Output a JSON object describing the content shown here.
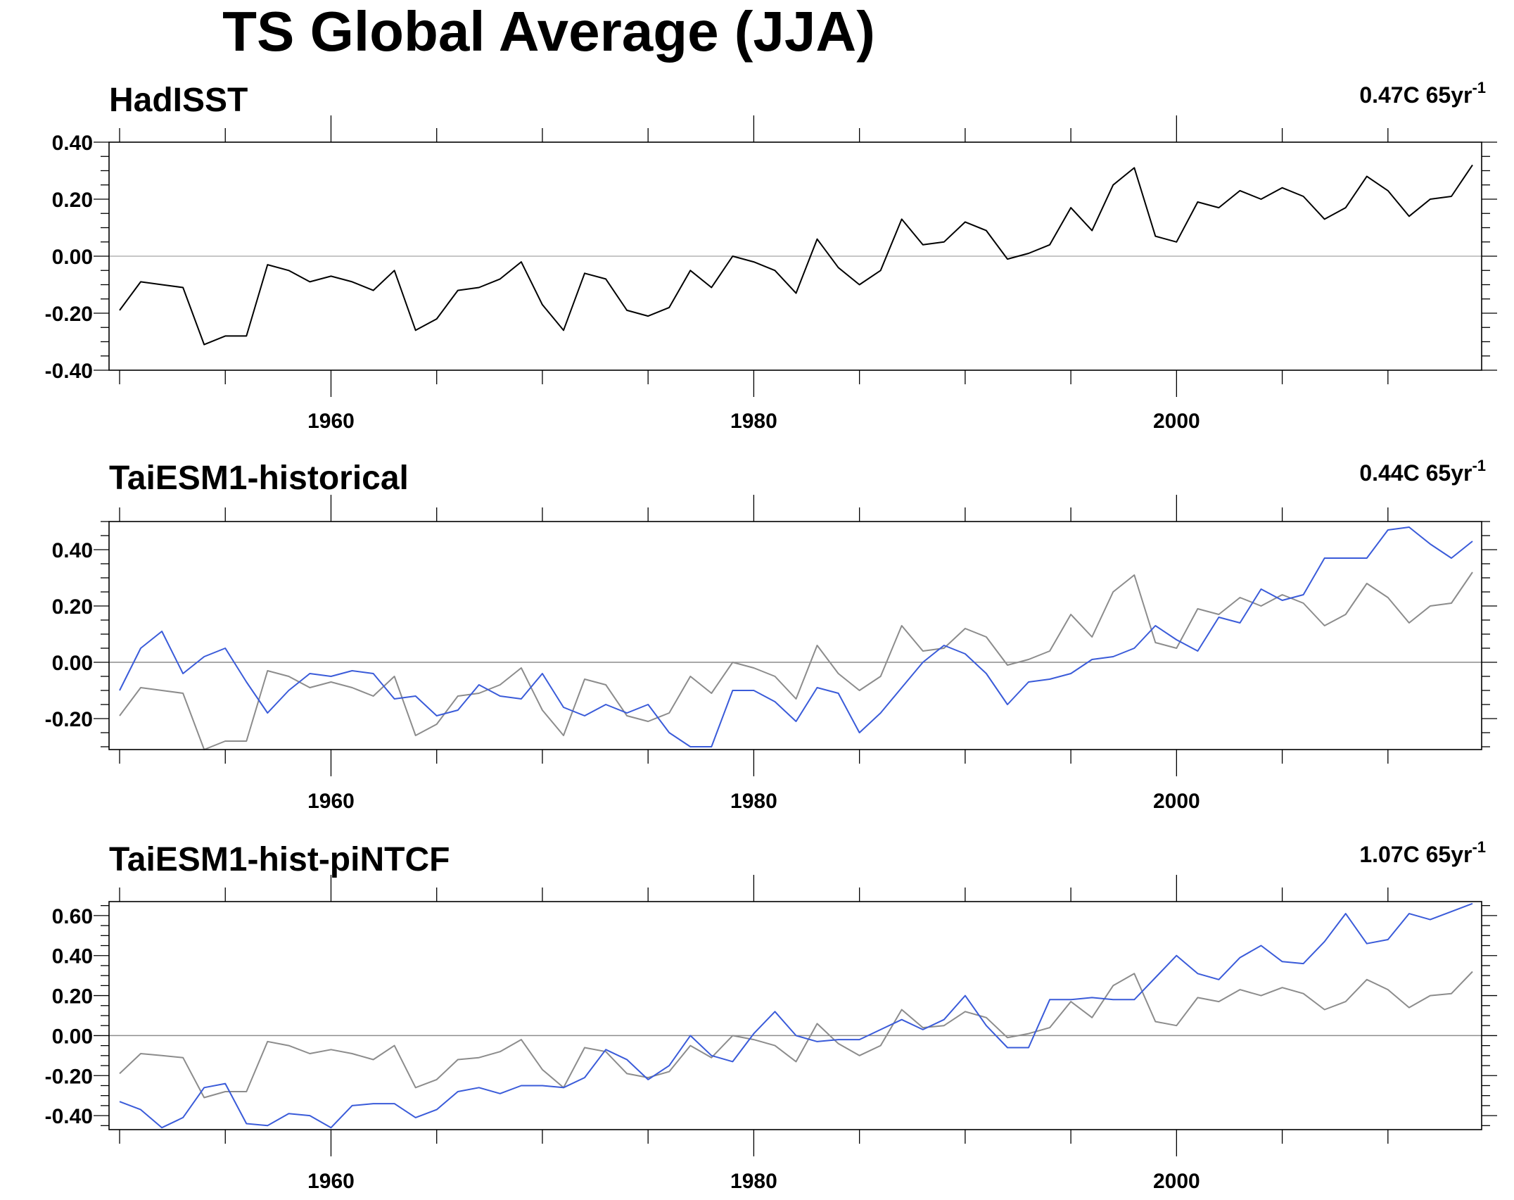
{
  "title": "TS Global Average (JJA)",
  "colors": {
    "observed": "#000000",
    "observed_overlay": "#8c8c8c",
    "model": "#3a5bd9",
    "zero_line": "#b4b4b4"
  },
  "chart_data": [
    {
      "type": "line",
      "title": "HadISST",
      "trend_text": "0.47C 65yr",
      "trend_exp": "-1",
      "ylim": [
        -0.4,
        0.4
      ],
      "yticks": [
        -0.4,
        -0.2,
        0.0,
        0.2,
        0.4
      ],
      "ytick_labels": [
        "-0.40",
        "-0.20",
        "0.00",
        "0.20",
        "0.40"
      ],
      "xlim": [
        1950,
        2014
      ],
      "xticks": [
        1960,
        1980,
        2000
      ],
      "xtick_labels": [
        "1960",
        "1980",
        "2000"
      ],
      "series": [
        {
          "role": "observed",
          "color": "#000000",
          "x_start": 1950,
          "values": [
            -0.19,
            -0.09,
            -0.1,
            -0.11,
            -0.31,
            -0.28,
            -0.28,
            -0.03,
            -0.05,
            -0.09,
            -0.07,
            -0.09,
            -0.12,
            -0.05,
            -0.26,
            -0.22,
            -0.12,
            -0.11,
            -0.08,
            -0.02,
            -0.17,
            -0.26,
            -0.06,
            -0.08,
            -0.19,
            -0.21,
            -0.18,
            -0.05,
            -0.11,
            0.0,
            -0.02,
            -0.05,
            -0.13,
            0.06,
            -0.04,
            -0.1,
            -0.05,
            0.13,
            0.04,
            0.05,
            0.12,
            0.09,
            -0.01,
            0.01,
            0.04,
            0.17,
            0.09,
            0.25,
            0.31,
            0.07,
            0.05,
            0.19,
            0.17,
            0.23,
            0.2,
            0.24,
            0.21,
            0.13,
            0.17,
            0.28,
            0.23,
            0.14,
            0.2,
            0.21,
            0.32
          ]
        }
      ]
    },
    {
      "type": "line",
      "title": "TaiESM1-historical",
      "trend_text": "0.44C 65yr",
      "trend_exp": "-1",
      "ylim": [
        -0.31,
        0.5
      ],
      "yticks": [
        -0.2,
        0.0,
        0.2,
        0.4
      ],
      "ytick_labels": [
        "-0.20",
        "0.00",
        "0.20",
        "0.40"
      ],
      "xlim": [
        1950,
        2014
      ],
      "xticks": [
        1960,
        1980,
        2000
      ],
      "xtick_labels": [
        "1960",
        "1980",
        "2000"
      ],
      "series": [
        {
          "role": "observed_overlay",
          "color": "#8c8c8c",
          "x_start": 1950,
          "values": [
            -0.19,
            -0.09,
            -0.1,
            -0.11,
            -0.31,
            -0.28,
            -0.28,
            -0.03,
            -0.05,
            -0.09,
            -0.07,
            -0.09,
            -0.12,
            -0.05,
            -0.26,
            -0.22,
            -0.12,
            -0.11,
            -0.08,
            -0.02,
            -0.17,
            -0.26,
            -0.06,
            -0.08,
            -0.19,
            -0.21,
            -0.18,
            -0.05,
            -0.11,
            0.0,
            -0.02,
            -0.05,
            -0.13,
            0.06,
            -0.04,
            -0.1,
            -0.05,
            0.13,
            0.04,
            0.05,
            0.12,
            0.09,
            -0.01,
            0.01,
            0.04,
            0.17,
            0.09,
            0.25,
            0.31,
            0.07,
            0.05,
            0.19,
            0.17,
            0.23,
            0.2,
            0.24,
            0.21,
            0.13,
            0.17,
            0.28,
            0.23,
            0.14,
            0.2,
            0.21,
            0.32
          ]
        },
        {
          "role": "model",
          "color": "#3a5bd9",
          "x_start": 1950,
          "values": [
            -0.1,
            0.05,
            0.11,
            -0.04,
            0.02,
            0.05,
            -0.07,
            -0.18,
            -0.1,
            -0.04,
            -0.05,
            -0.03,
            -0.04,
            -0.13,
            -0.12,
            -0.19,
            -0.17,
            -0.08,
            -0.12,
            -0.13,
            -0.04,
            -0.16,
            -0.19,
            -0.15,
            -0.18,
            -0.15,
            -0.25,
            -0.3,
            -0.3,
            -0.1,
            -0.1,
            -0.14,
            -0.21,
            -0.09,
            -0.11,
            -0.25,
            -0.18,
            -0.09,
            0.0,
            0.06,
            0.03,
            -0.04,
            -0.15,
            -0.07,
            -0.06,
            -0.04,
            0.01,
            0.02,
            0.05,
            0.13,
            0.08,
            0.04,
            0.16,
            0.14,
            0.26,
            0.22,
            0.24,
            0.37,
            0.37,
            0.37,
            0.47,
            0.48,
            0.42,
            0.37,
            0.43
          ]
        }
      ]
    },
    {
      "type": "line",
      "title": "TaiESM1-hist-piNTCF",
      "trend_text": "1.07C 65yr",
      "trend_exp": "-1",
      "ylim": [
        -0.47,
        0.67
      ],
      "yticks": [
        -0.4,
        -0.2,
        0.0,
        0.2,
        0.4,
        0.6
      ],
      "ytick_labels": [
        "-0.40",
        "-0.20",
        "0.00",
        "0.20",
        "0.40",
        "0.60"
      ],
      "xlim": [
        1950,
        2014
      ],
      "xticks": [
        1960,
        1980,
        2000
      ],
      "xtick_labels": [
        "1960",
        "1980",
        "2000"
      ],
      "series": [
        {
          "role": "observed_overlay",
          "color": "#8c8c8c",
          "x_start": 1950,
          "values": [
            -0.19,
            -0.09,
            -0.1,
            -0.11,
            -0.31,
            -0.28,
            -0.28,
            -0.03,
            -0.05,
            -0.09,
            -0.07,
            -0.09,
            -0.12,
            -0.05,
            -0.26,
            -0.22,
            -0.12,
            -0.11,
            -0.08,
            -0.02,
            -0.17,
            -0.26,
            -0.06,
            -0.08,
            -0.19,
            -0.21,
            -0.18,
            -0.05,
            -0.11,
            0.0,
            -0.02,
            -0.05,
            -0.13,
            0.06,
            -0.04,
            -0.1,
            -0.05,
            0.13,
            0.04,
            0.05,
            0.12,
            0.09,
            -0.01,
            0.01,
            0.04,
            0.17,
            0.09,
            0.25,
            0.31,
            0.07,
            0.05,
            0.19,
            0.17,
            0.23,
            0.2,
            0.24,
            0.21,
            0.13,
            0.17,
            0.28,
            0.23,
            0.14,
            0.2,
            0.21,
            0.32
          ]
        },
        {
          "role": "model",
          "color": "#3a5bd9",
          "x_start": 1950,
          "values": [
            -0.33,
            -0.37,
            -0.46,
            -0.41,
            -0.26,
            -0.24,
            -0.44,
            -0.45,
            -0.39,
            -0.4,
            -0.46,
            -0.35,
            -0.34,
            -0.34,
            -0.41,
            -0.37,
            -0.28,
            -0.26,
            -0.29,
            -0.25,
            -0.25,
            -0.26,
            -0.21,
            -0.07,
            -0.12,
            -0.22,
            -0.15,
            0.0,
            -0.1,
            -0.13,
            0.01,
            0.12,
            0.0,
            -0.03,
            -0.02,
            -0.02,
            0.03,
            0.08,
            0.03,
            0.08,
            0.2,
            0.05,
            -0.06,
            -0.06,
            0.18,
            0.18,
            0.19,
            0.18,
            0.18,
            0.29,
            0.4,
            0.31,
            0.28,
            0.39,
            0.45,
            0.37,
            0.36,
            0.47,
            0.61,
            0.46,
            0.48,
            0.61,
            0.58,
            0.62,
            0.66
          ]
        }
      ]
    }
  ]
}
